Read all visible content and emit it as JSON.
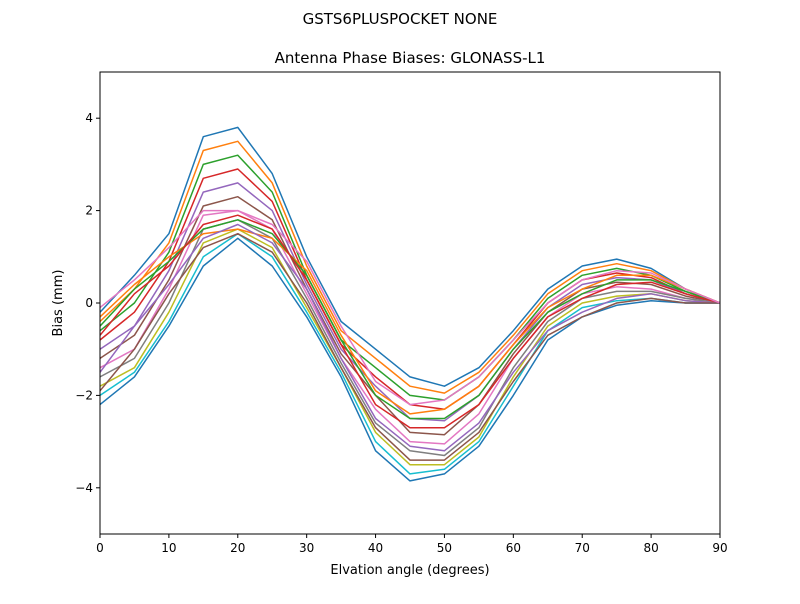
{
  "chart_data": {
    "type": "line",
    "suptitle": "GSTS6PLUSPOCKET NONE",
    "title": "Antenna Phase Biases: GLONASS-L1",
    "xlabel": "Elvation angle (degrees)",
    "ylabel": "Bias (mm)",
    "xlim": [
      0,
      90
    ],
    "ylim": [
      -5,
      5
    ],
    "xticks": [
      0,
      10,
      20,
      30,
      40,
      50,
      60,
      70,
      80,
      90
    ],
    "yticks": [
      -4,
      -2,
      0,
      2,
      4
    ],
    "grid": false,
    "legend": "none",
    "x": [
      0,
      5,
      10,
      15,
      20,
      25,
      30,
      35,
      40,
      45,
      50,
      55,
      60,
      65,
      70,
      75,
      80,
      85,
      90
    ],
    "series_colors": [
      "#1f77b4",
      "#ff7f0e",
      "#2ca02c",
      "#d62728",
      "#9467bd",
      "#8c564b",
      "#e377c2",
      "#7f7f7f",
      "#bcbd22",
      "#17becf"
    ],
    "series": [
      {
        "values": [
          -0.2,
          0.6,
          1.5,
          3.6,
          3.8,
          2.8,
          1.0,
          -0.4,
          -1.0,
          -1.6,
          -1.8,
          -1.4,
          -0.6,
          0.3,
          0.8,
          0.95,
          0.75,
          0.3,
          0.0
        ]
      },
      {
        "values": [
          -0.4,
          0.3,
          1.3,
          3.3,
          3.5,
          2.6,
          0.8,
          -0.6,
          -1.2,
          -1.8,
          -1.95,
          -1.5,
          -0.7,
          0.2,
          0.7,
          0.85,
          0.7,
          0.3,
          0.0
        ]
      },
      {
        "values": [
          -0.6,
          0.0,
          1.1,
          3.0,
          3.2,
          2.4,
          0.6,
          -0.8,
          -1.4,
          -2.0,
          -2.1,
          -1.6,
          -0.8,
          0.1,
          0.6,
          0.75,
          0.6,
          0.25,
          0.0
        ]
      },
      {
        "values": [
          -0.8,
          -0.2,
          0.9,
          2.7,
          2.9,
          2.2,
          0.5,
          -0.9,
          -1.6,
          -2.2,
          -2.3,
          -1.8,
          -0.9,
          0.0,
          0.5,
          0.65,
          0.55,
          0.2,
          0.0
        ]
      },
      {
        "values": [
          -1.0,
          -0.5,
          0.7,
          2.4,
          2.6,
          2.0,
          0.4,
          -1.0,
          -1.8,
          -2.5,
          -2.55,
          -2.0,
          -1.0,
          -0.1,
          0.4,
          0.55,
          0.5,
          0.2,
          0.0
        ]
      },
      {
        "values": [
          -1.2,
          -0.7,
          0.5,
          2.1,
          2.3,
          1.8,
          0.3,
          -1.1,
          -2.0,
          -2.8,
          -2.85,
          -2.2,
          -1.1,
          -0.2,
          0.3,
          0.45,
          0.4,
          0.15,
          0.0
        ]
      },
      {
        "values": [
          -1.4,
          -1.0,
          0.3,
          1.9,
          2.0,
          1.6,
          0.2,
          -1.2,
          -2.3,
          -3.0,
          -3.05,
          -2.4,
          -1.2,
          -0.3,
          0.2,
          0.35,
          0.3,
          0.1,
          0.0
        ]
      },
      {
        "values": [
          -1.6,
          -1.2,
          0.0,
          1.6,
          1.8,
          1.4,
          0.1,
          -1.3,
          -2.6,
          -3.2,
          -3.3,
          -2.7,
          -1.4,
          -0.4,
          0.1,
          0.25,
          0.25,
          0.1,
          0.0
        ]
      },
      {
        "values": [
          -1.8,
          -1.4,
          -0.2,
          1.3,
          1.6,
          1.2,
          -0.1,
          -1.4,
          -2.8,
          -3.5,
          -3.5,
          -2.9,
          -1.6,
          -0.5,
          0.0,
          0.15,
          0.2,
          0.05,
          0.0
        ]
      },
      {
        "values": [
          -2.0,
          -1.5,
          -0.4,
          1.0,
          1.5,
          1.0,
          -0.2,
          -1.5,
          -3.0,
          -3.7,
          -3.6,
          -3.0,
          -1.8,
          -0.6,
          -0.1,
          0.05,
          0.1,
          0.0,
          0.0
        ]
      },
      {
        "values": [
          -2.2,
          -1.6,
          -0.5,
          0.8,
          1.4,
          0.8,
          -0.3,
          -1.6,
          -3.2,
          -3.85,
          -3.7,
          -3.1,
          -2.0,
          -0.8,
          -0.3,
          -0.05,
          0.05,
          0.0,
          0.0
        ]
      },
      {
        "values": [
          -0.3,
          0.4,
          1.0,
          1.5,
          1.6,
          1.4,
          0.7,
          -0.7,
          -1.9,
          -2.4,
          -2.3,
          -1.8,
          -0.9,
          -0.1,
          0.3,
          0.6,
          0.6,
          0.3,
          0.0
        ]
      },
      {
        "values": [
          -0.5,
          0.3,
          0.9,
          1.6,
          1.8,
          1.5,
          0.6,
          -0.8,
          -2.0,
          -2.5,
          -2.5,
          -2.0,
          -1.0,
          -0.2,
          0.2,
          0.5,
          0.5,
          0.25,
          0.0
        ]
      },
      {
        "values": [
          -0.7,
          0.2,
          0.8,
          1.7,
          1.9,
          1.6,
          0.5,
          -0.9,
          -2.2,
          -2.7,
          -2.7,
          -2.2,
          -1.2,
          -0.3,
          0.1,
          0.4,
          0.45,
          0.2,
          0.0
        ]
      },
      {
        "values": [
          -1.5,
          -0.5,
          0.4,
          1.4,
          1.7,
          1.3,
          0.3,
          -1.2,
          -2.5,
          -3.1,
          -3.2,
          -2.6,
          -1.5,
          -0.6,
          -0.2,
          0.1,
          0.2,
          0.05,
          0.0
        ]
      },
      {
        "values": [
          -1.9,
          -1.0,
          0.2,
          1.2,
          1.5,
          1.1,
          0.0,
          -1.4,
          -2.7,
          -3.4,
          -3.4,
          -2.8,
          -1.7,
          -0.7,
          -0.3,
          0.0,
          0.1,
          0.0,
          0.0
        ]
      },
      {
        "values": [
          -0.1,
          0.5,
          1.2,
          2.0,
          2.0,
          1.7,
          0.9,
          -0.5,
          -1.7,
          -2.2,
          -2.1,
          -1.6,
          -0.8,
          0.0,
          0.5,
          0.7,
          0.65,
          0.3,
          0.0
        ]
      }
    ]
  }
}
